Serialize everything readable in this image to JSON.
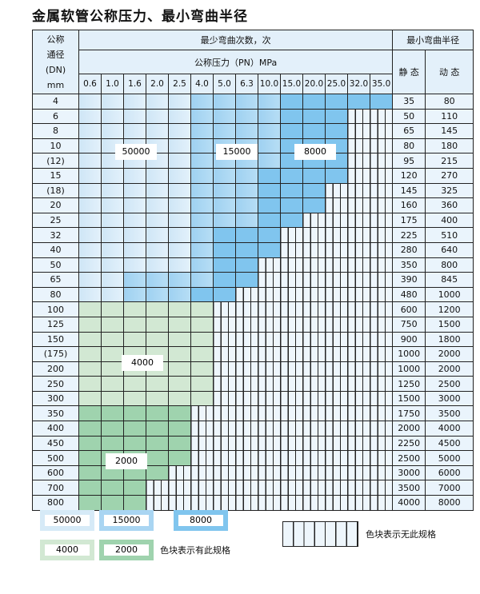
{
  "title": "金属软管公称压力、最小弯曲半径",
  "header": {
    "dn_label_lines": [
      "公称",
      "通径",
      "(DN)",
      "mm"
    ],
    "cycles_label": "最少弯曲次数，次",
    "pressure_label": "公称压力（PN）MPa",
    "radius_label": "最小弯曲半径",
    "static_label": "静 态",
    "dynamic_label": "动 态",
    "pressures": [
      "0.6",
      "1.0",
      "1.6",
      "2.0",
      "2.5",
      "4.0",
      "5.0",
      "6.3",
      "10.0",
      "15.0",
      "20.0",
      "25.0",
      "32.0",
      "35.0"
    ]
  },
  "fill_legend": {
    "L": "50000",
    "M": "15000",
    "D": "8000",
    "G1": "4000",
    "G2": "2000",
    "X": "色块表示无此规格"
  },
  "colors": {
    "L": "#d4e9f7",
    "M": "#a9d5f2",
    "D": "#80c5ee",
    "G1": "#d2e8d3",
    "G2": "#9fd3ae",
    "X": "#eef6fc"
  },
  "rows": [
    {
      "dn": "4",
      "static": "35",
      "dynamic": "80",
      "fill": "L L L L L M M M M D D D D D"
    },
    {
      "dn": "6",
      "static": "50",
      "dynamic": "110",
      "fill": "L L L L L M M M M D D D X X"
    },
    {
      "dn": "8",
      "static": "65",
      "dynamic": "145",
      "fill": "L L L L L M M M M D D D X X"
    },
    {
      "dn": "10",
      "static": "80",
      "dynamic": "180",
      "fill": "L L L L L M M M M D D D X X"
    },
    {
      "dn": "(12)",
      "static": "95",
      "dynamic": "215",
      "fill": "L L L L L M M M M D D D X X"
    },
    {
      "dn": "15",
      "static": "120",
      "dynamic": "270",
      "fill": "L L L L L M M M D D D D X X"
    },
    {
      "dn": "(18)",
      "static": "145",
      "dynamic": "325",
      "fill": "L L L L L M M M D D D X X X"
    },
    {
      "dn": "20",
      "static": "160",
      "dynamic": "360",
      "fill": "L L L L L M M M D D D X X X"
    },
    {
      "dn": "25",
      "static": "175",
      "dynamic": "400",
      "fill": "L L L L L M M M D D X X X X"
    },
    {
      "dn": "32",
      "static": "225",
      "dynamic": "510",
      "fill": "L L L L L M D D D X X X X X"
    },
    {
      "dn": "40",
      "static": "280",
      "dynamic": "640",
      "fill": "L L L L L M D D D X X X X X"
    },
    {
      "dn": "50",
      "static": "350",
      "dynamic": "800",
      "fill": "L L L L L M D D X X X X X X"
    },
    {
      "dn": "65",
      "static": "390",
      "dynamic": "845",
      "fill": "L L M M M M D D X X X X X X"
    },
    {
      "dn": "80",
      "static": "480",
      "dynamic": "1000",
      "fill": "L L M M M D D X X X X X X X"
    },
    {
      "dn": "100",
      "static": "600",
      "dynamic": "1200",
      "fill": "G1 G1 G1 G1 G1 G1 X X X X X X X X"
    },
    {
      "dn": "125",
      "static": "750",
      "dynamic": "1500",
      "fill": "G1 G1 G1 G1 G1 G1 X X X X X X X X"
    },
    {
      "dn": "150",
      "static": "900",
      "dynamic": "1800",
      "fill": "G1 G1 G1 G1 G1 G1 X X X X X X X X"
    },
    {
      "dn": "(175)",
      "static": "1000",
      "dynamic": "2000",
      "fill": "G1 G1 G1 G1 G1 G1 X X X X X X X X"
    },
    {
      "dn": "200",
      "static": "1000",
      "dynamic": "2000",
      "fill": "G1 G1 G1 G1 G1 G1 X X X X X X X X"
    },
    {
      "dn": "250",
      "static": "1250",
      "dynamic": "2500",
      "fill": "G1 G1 G1 G1 G1 G1 X X X X X X X X"
    },
    {
      "dn": "300",
      "static": "1500",
      "dynamic": "3000",
      "fill": "G1 G1 G1 G1 G1 G1 X X X X X X X X"
    },
    {
      "dn": "350",
      "static": "1750",
      "dynamic": "3500",
      "fill": "G2 G2 G2 G2 G2 X X X X X X X X X"
    },
    {
      "dn": "400",
      "static": "2000",
      "dynamic": "4000",
      "fill": "G2 G2 G2 G2 G2 X X X X X X X X X"
    },
    {
      "dn": "450",
      "static": "2250",
      "dynamic": "4500",
      "fill": "G2 G2 G2 G2 G2 X X X X X X X X X"
    },
    {
      "dn": "500",
      "static": "2500",
      "dynamic": "5000",
      "fill": "G2 G2 G2 G2 G2 X X X X X X X X X"
    },
    {
      "dn": "600",
      "static": "3000",
      "dynamic": "6000",
      "fill": "G2 G2 G2 G2 X X X X X X X X X X"
    },
    {
      "dn": "700",
      "static": "3500",
      "dynamic": "7000",
      "fill": "G2 G2 G2 X X X X X X X X X X X"
    },
    {
      "dn": "800",
      "static": "4000",
      "dynamic": "8000",
      "fill": "G2 G2 G2 X X X X X X X X X X X"
    }
  ],
  "region_labels": {
    "l50000": "50000",
    "l15000": "15000",
    "l8000": "8000",
    "l4000": "4000",
    "l2000": "2000"
  },
  "legend": {
    "items": [
      "50000",
      "15000",
      "8000",
      "4000",
      "2000"
    ],
    "has_spec_note": "色块表示有此规格",
    "no_spec_note": "色块表示无此规格"
  }
}
